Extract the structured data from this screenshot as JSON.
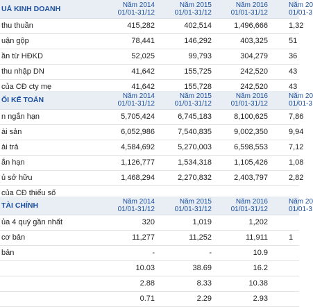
{
  "sections": [
    {
      "title": "UẢ KINH DOANH",
      "col_years": [
        "Năm 2014",
        "Năm 2015",
        "Năm 2016",
        "Năm 20"
      ],
      "col_periods": [
        "01/01-31/12",
        "01/01-31/12",
        "01/01-31/12",
        "01/01-3"
      ],
      "rows": [
        {
          "label": "thu thuần",
          "values": [
            "415,282",
            "402,514",
            "1,496,666",
            "1,32"
          ]
        },
        {
          "label": "uận gộp",
          "values": [
            "78,441",
            "146,292",
            "403,325",
            "51"
          ]
        },
        {
          "label": "ần từ HĐKD",
          "values": [
            "52,025",
            "99,793",
            "304,279",
            "36"
          ]
        },
        {
          "label": "thu nhập DN",
          "values": [
            "41,642",
            "155,725",
            "242,520",
            "43"
          ]
        },
        {
          "label": "của CĐ cty mẹ",
          "values": [
            "41,642",
            "155,728",
            "242,520",
            "43"
          ]
        }
      ]
    },
    {
      "title": "ỐI KẾ TOÁN",
      "col_years": [
        "Năm 2014",
        "Năm 2015",
        "Năm 2016",
        "Năm 20"
      ],
      "col_periods": [
        "01/01-31/12",
        "01/01-31/12",
        "01/01-31/12",
        "01/01-3"
      ],
      "rows": [
        {
          "label": "n ngắn hạn",
          "values": [
            "5,705,424",
            "6,745,183",
            "8,100,625",
            "7,86"
          ]
        },
        {
          "label": "ài sản",
          "values": [
            "6,052,986",
            "7,540,835",
            "9,002,350",
            "9,94"
          ]
        },
        {
          "label": "ải trả",
          "values": [
            "4,584,692",
            "5,270,003",
            "6,598,553",
            "7,12"
          ]
        },
        {
          "label": "ắn hạn",
          "values": [
            "1,126,777",
            "1,534,318",
            "1,105,426",
            "1,08"
          ]
        },
        {
          "label": "ủ sở hữu",
          "values": [
            "1,468,294",
            "2,270,832",
            "2,403,797",
            "2,82"
          ]
        },
        {
          "label": "của CĐ thiểu số",
          "values": [
            "",
            "",
            "",
            ""
          ]
        }
      ]
    },
    {
      "title": "TÀI CHÍNH",
      "col_years": [
        "Năm 2014",
        "Năm 2015",
        "Năm 2016",
        "Năm 20"
      ],
      "col_periods": [
        "01/01-31/12",
        "01/01-31/12",
        "01/01-31/12",
        "01/01-3"
      ],
      "rows": [
        {
          "label": "ủa 4 quý gần nhất",
          "values": [
            "320",
            "1,019",
            "1,202",
            ""
          ]
        },
        {
          "label": "cơ bản",
          "values": [
            "11,277",
            "11,252",
            "11,911",
            "1"
          ]
        },
        {
          "label": "bản",
          "values": [
            "-",
            "-",
            "10.9",
            ""
          ]
        },
        {
          "label": "",
          "values": [
            "10.03",
            "38.69",
            "16.2",
            ""
          ]
        },
        {
          "label": "",
          "values": [
            "2.88",
            "8.33",
            "10.38",
            ""
          ]
        },
        {
          "label": "",
          "values": [
            "0.71",
            "2.29",
            "2.93",
            ""
          ]
        }
      ]
    }
  ]
}
